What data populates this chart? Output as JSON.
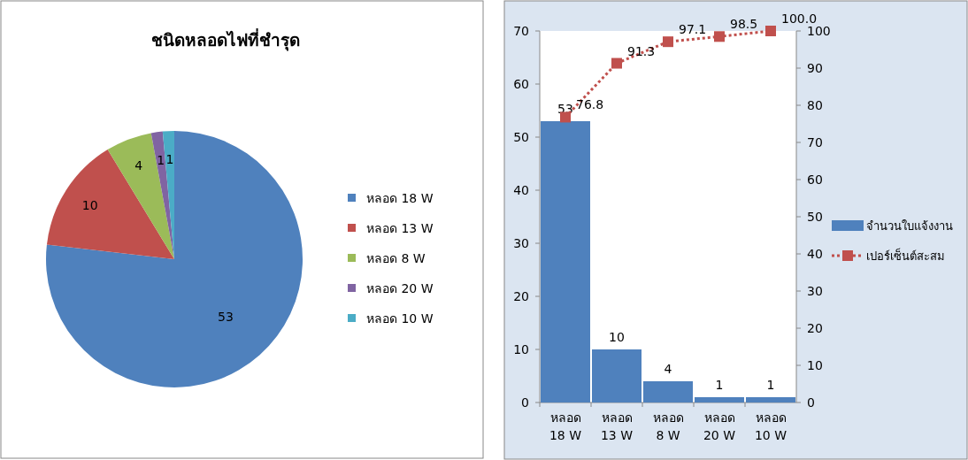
{
  "chart_data": [
    {
      "type": "pie",
      "title": "ชนิดหลอดไฟที่ชำรุด",
      "categories": [
        "หลอด 18 W",
        "หลอด 13 W",
        "หลอด 8 W",
        "หลอด 20 W",
        "หลอด 10 W"
      ],
      "values": [
        53,
        10,
        4,
        1,
        1
      ],
      "colors": [
        "#4f81bd",
        "#c0504d",
        "#9bbb59",
        "#8064a2",
        "#4bacc6"
      ],
      "data_labels": true,
      "legend": "right"
    },
    {
      "type": "bar",
      "categories": [
        "หลอด 18 W",
        "หลอด 13 W",
        "หลอด 8 W",
        "หลอด 20 W",
        "หลอด 10 W"
      ],
      "ylim": [
        0,
        70
      ],
      "yticks": [
        0,
        10,
        20,
        30,
        40,
        50,
        60,
        70
      ],
      "y2lim": [
        0,
        100
      ],
      "y2ticks": [
        0,
        10,
        20,
        30,
        40,
        50,
        60,
        70,
        80,
        90,
        100
      ],
      "data_labels": true,
      "legend": "right",
      "series": [
        {
          "name": "จำนวนใบแจ้งงาน",
          "color": "#4f81bd",
          "values": [
            53,
            10,
            4,
            1,
            1
          ]
        },
        {
          "name": "เปอร์เซ็นต์สะสม",
          "type": "line",
          "axis": "y2",
          "color": "#c0504d",
          "marker": "square",
          "line_style": "dotted",
          "values": [
            76.8,
            91.3,
            97.1,
            98.5,
            100.0
          ],
          "value_labels": [
            "76.8",
            "91.3",
            "97.1",
            "98.5",
            "100.0"
          ]
        }
      ]
    }
  ]
}
